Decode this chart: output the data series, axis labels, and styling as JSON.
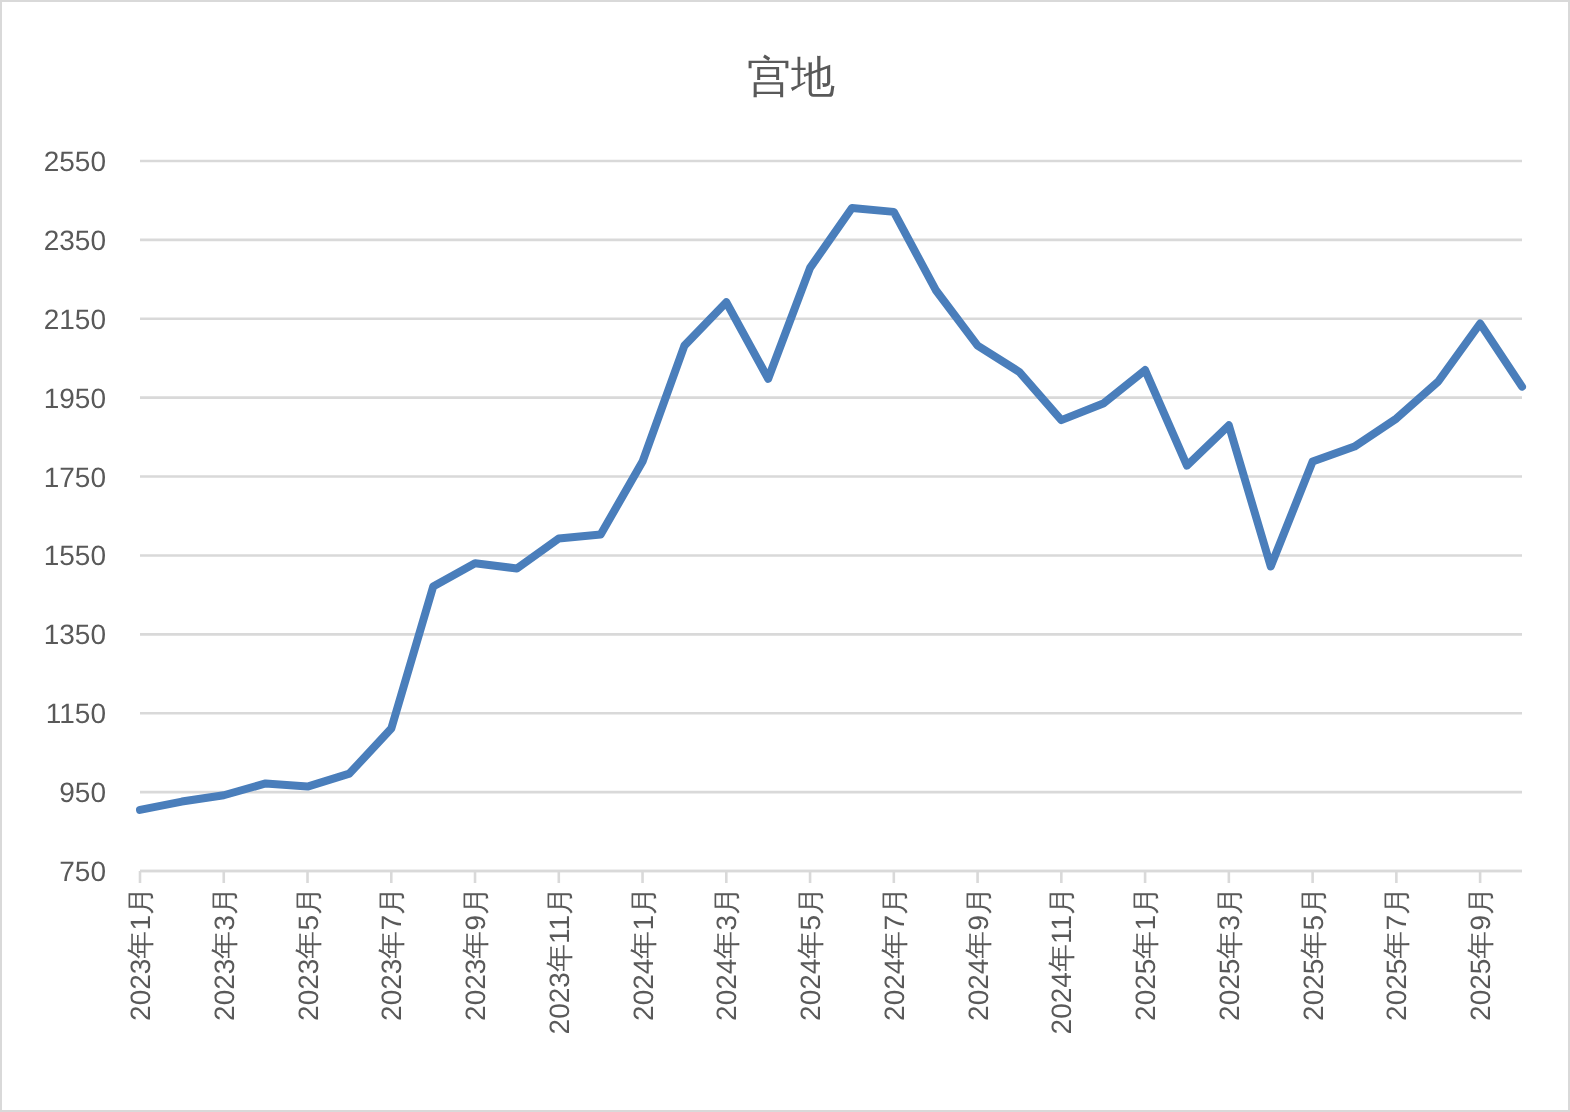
{
  "chart_data": {
    "type": "line",
    "title": "宫地",
    "categories": [
      "2023年1月",
      null,
      "2023年3月",
      null,
      "2023年5月",
      null,
      "2023年7月",
      null,
      "2023年9月",
      null,
      "2023年11月",
      null,
      "2024年1月",
      null,
      "2024年3月",
      null,
      "2024年5月",
      null,
      "2024年7月",
      null,
      "2024年9月",
      null,
      "2024年11月",
      null,
      "2025年1月",
      null,
      "2025年3月",
      null,
      "2025年5月",
      null,
      "2025年7月",
      null,
      "2025年9月",
      null
    ],
    "series": [
      {
        "color": "#4a7ebb",
        "values": [
          905,
          926,
          942,
          972,
          964,
          997,
          1111,
          1471,
          1530,
          1517,
          1593,
          1603,
          1788,
          2082,
          2192,
          1998,
          2279,
          2431,
          2421,
          2223,
          2082,
          2015,
          1893,
          1935,
          2020,
          1778,
          1880,
          1522,
          1788,
          1826,
          1897,
          1991,
          2138,
          1978
        ]
      }
    ],
    "ylim": [
      750,
      2550
    ],
    "yticks": [
      750,
      950,
      1150,
      1350,
      1550,
      1750,
      1950,
      2150,
      2350,
      2550
    ],
    "grid": "y",
    "marker": "none",
    "line_style": "solid"
  }
}
